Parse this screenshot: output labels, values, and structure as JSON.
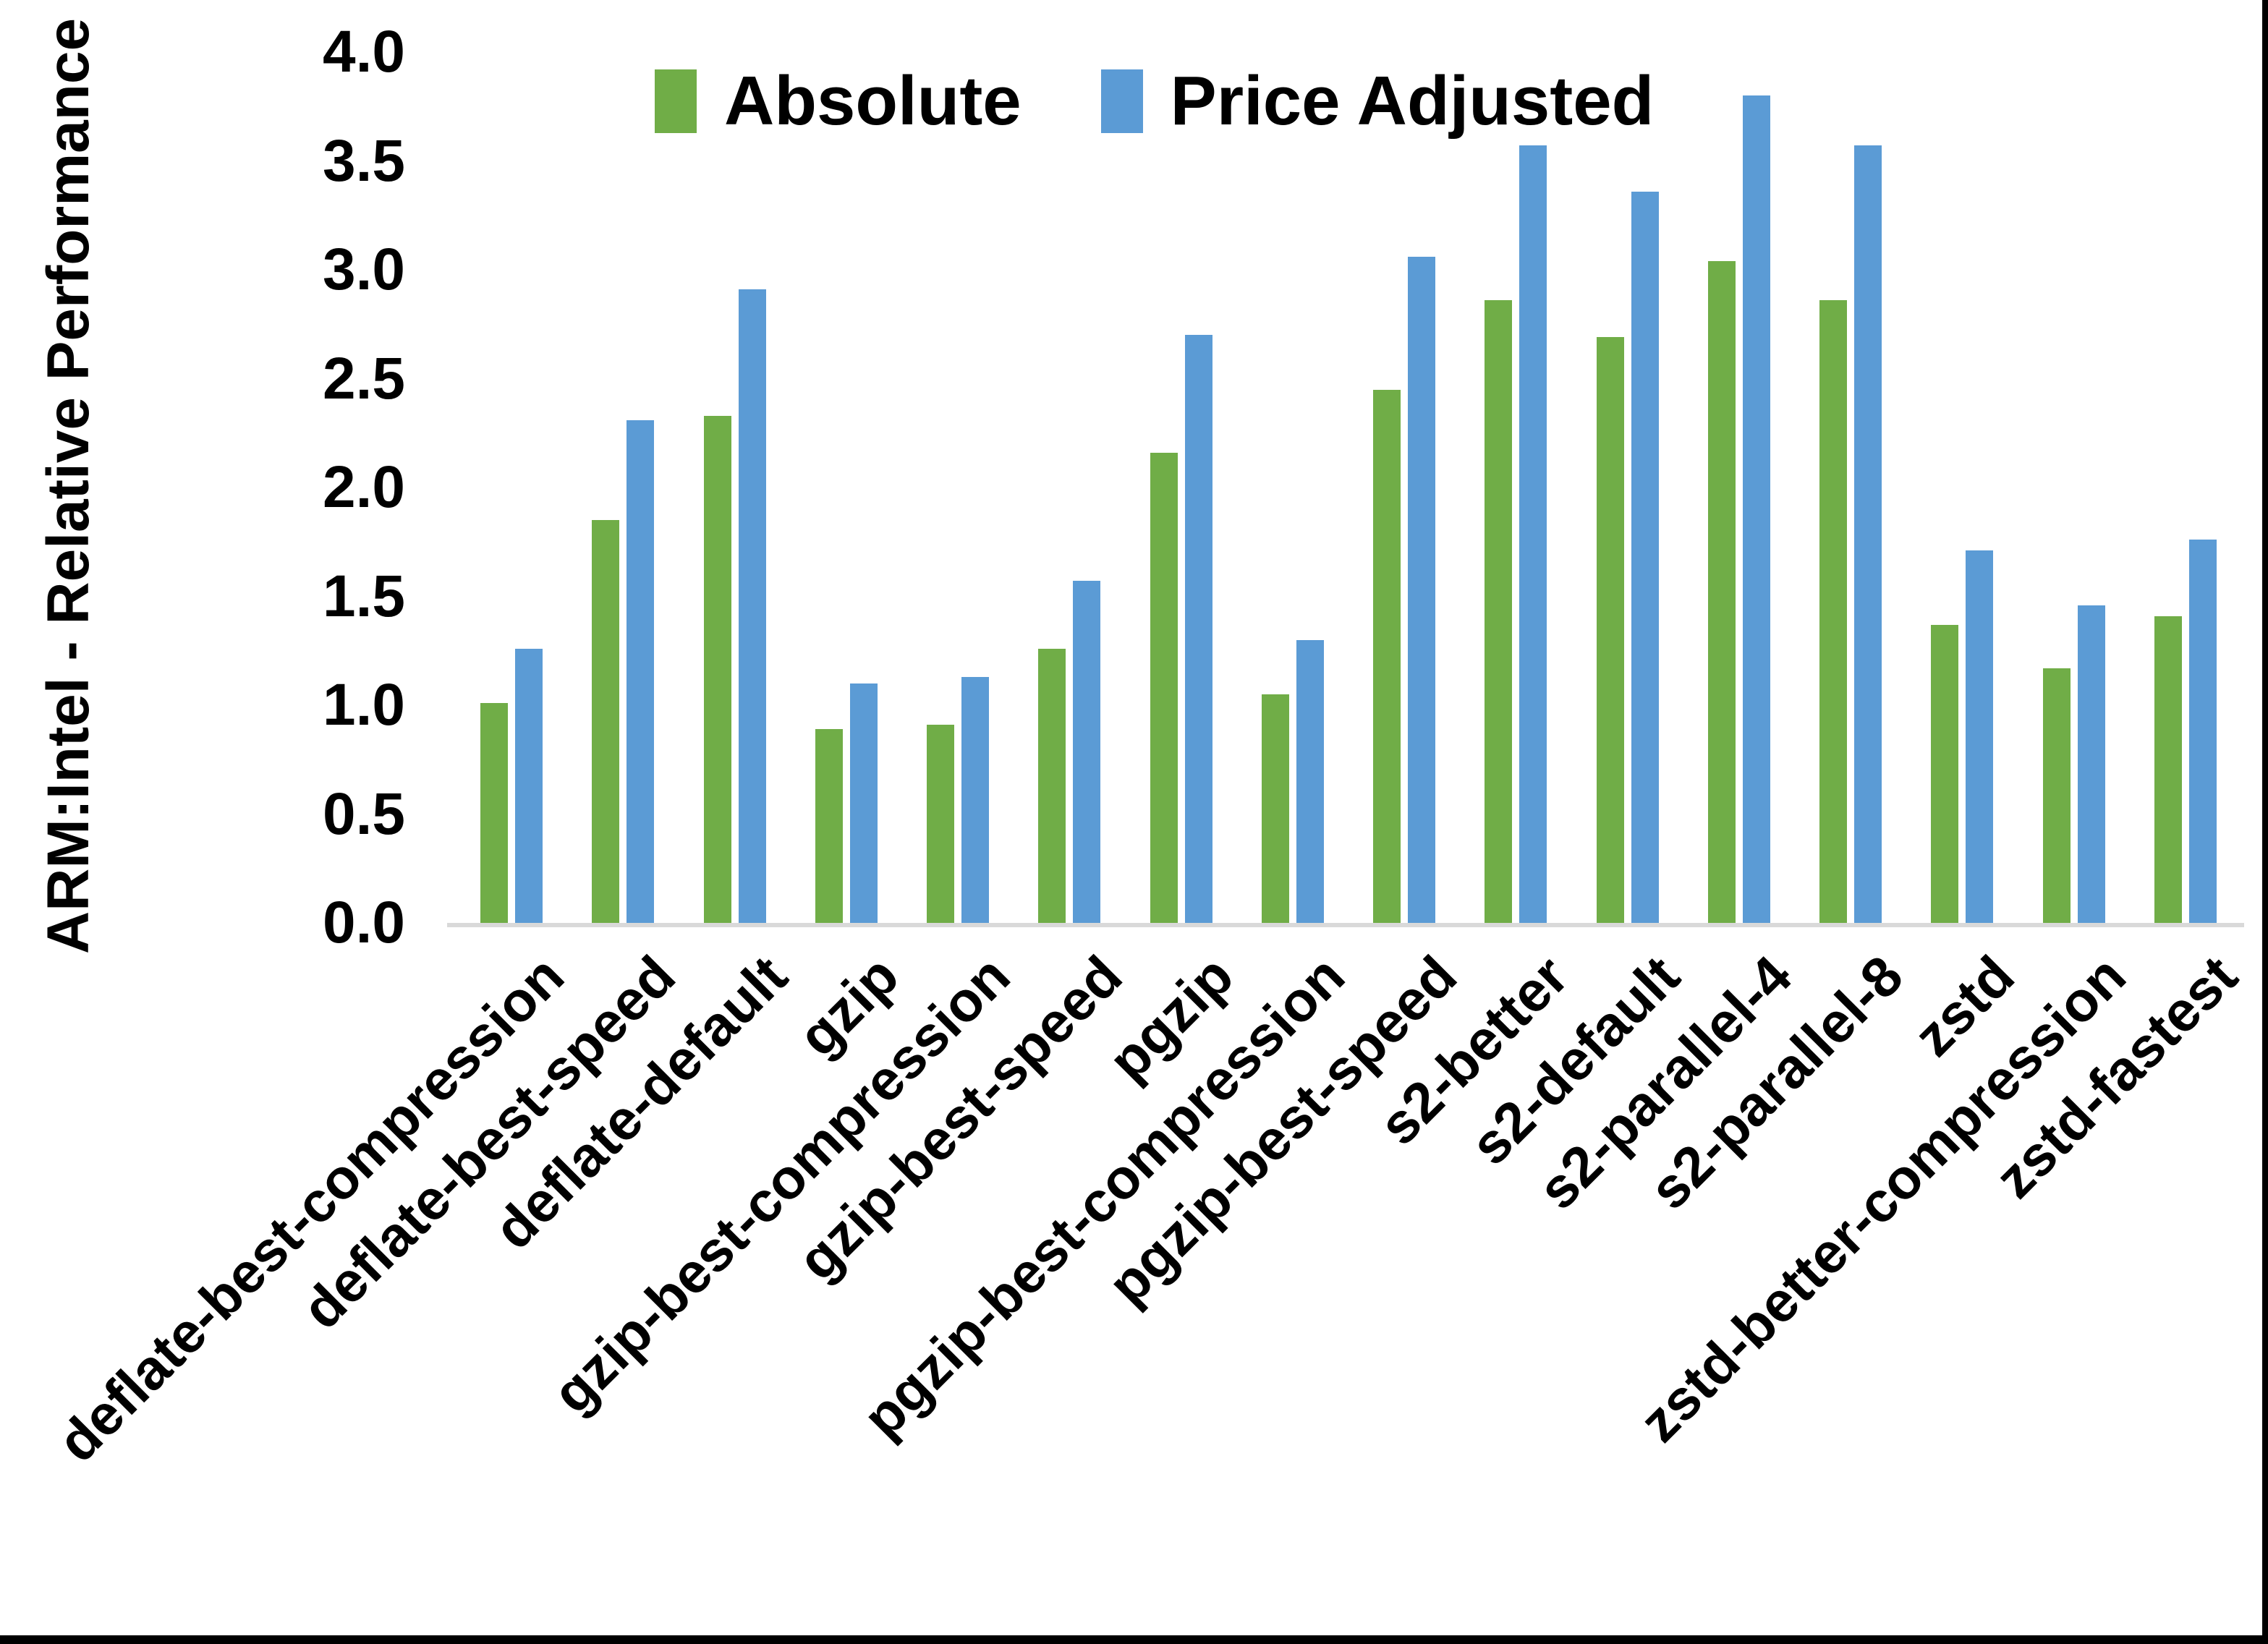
{
  "page": {
    "background": "#ffffff",
    "border_color": "#000000"
  },
  "chart_data": {
    "type": "bar",
    "title": "",
    "xlabel": "",
    "ylabel": "ARM:Intel - Relative Performance",
    "ylim": [
      0.0,
      4.0
    ],
    "ytick_step": 0.5,
    "ytick_labels": [
      "0.0",
      "0.5",
      "1.0",
      "1.5",
      "2.0",
      "2.5",
      "3.0",
      "3.5",
      "4.0"
    ],
    "grid": false,
    "legend_position": "top-center",
    "axis_line_color": "#D9D9D9",
    "categories": [
      "deflate-best-compression",
      "deflate-best-speed",
      "deflate-default",
      "gzip",
      "gzip-best-compression",
      "gzip-best-speed",
      "pgzip",
      "pgzip-best-compression",
      "pgzip-best-speed",
      "s2-better",
      "s2-default",
      "s2-parallel-4",
      "s2-parallel-8",
      "zstd",
      "zstd-better-compression",
      "zstd-fastest"
    ],
    "series": [
      {
        "name": "Absolute",
        "color": "#70AD47",
        "values": [
          1.01,
          1.85,
          2.33,
          0.89,
          0.91,
          1.26,
          2.16,
          1.05,
          2.45,
          2.86,
          2.69,
          3.04,
          2.86,
          1.37,
          1.17,
          1.41
        ]
      },
      {
        "name": "Price Adjusted",
        "color": "#5B9BD5",
        "values": [
          1.26,
          2.31,
          2.91,
          1.1,
          1.13,
          1.57,
          2.7,
          1.3,
          3.06,
          3.57,
          3.36,
          3.8,
          3.57,
          1.71,
          1.46,
          1.76
        ]
      }
    ]
  }
}
